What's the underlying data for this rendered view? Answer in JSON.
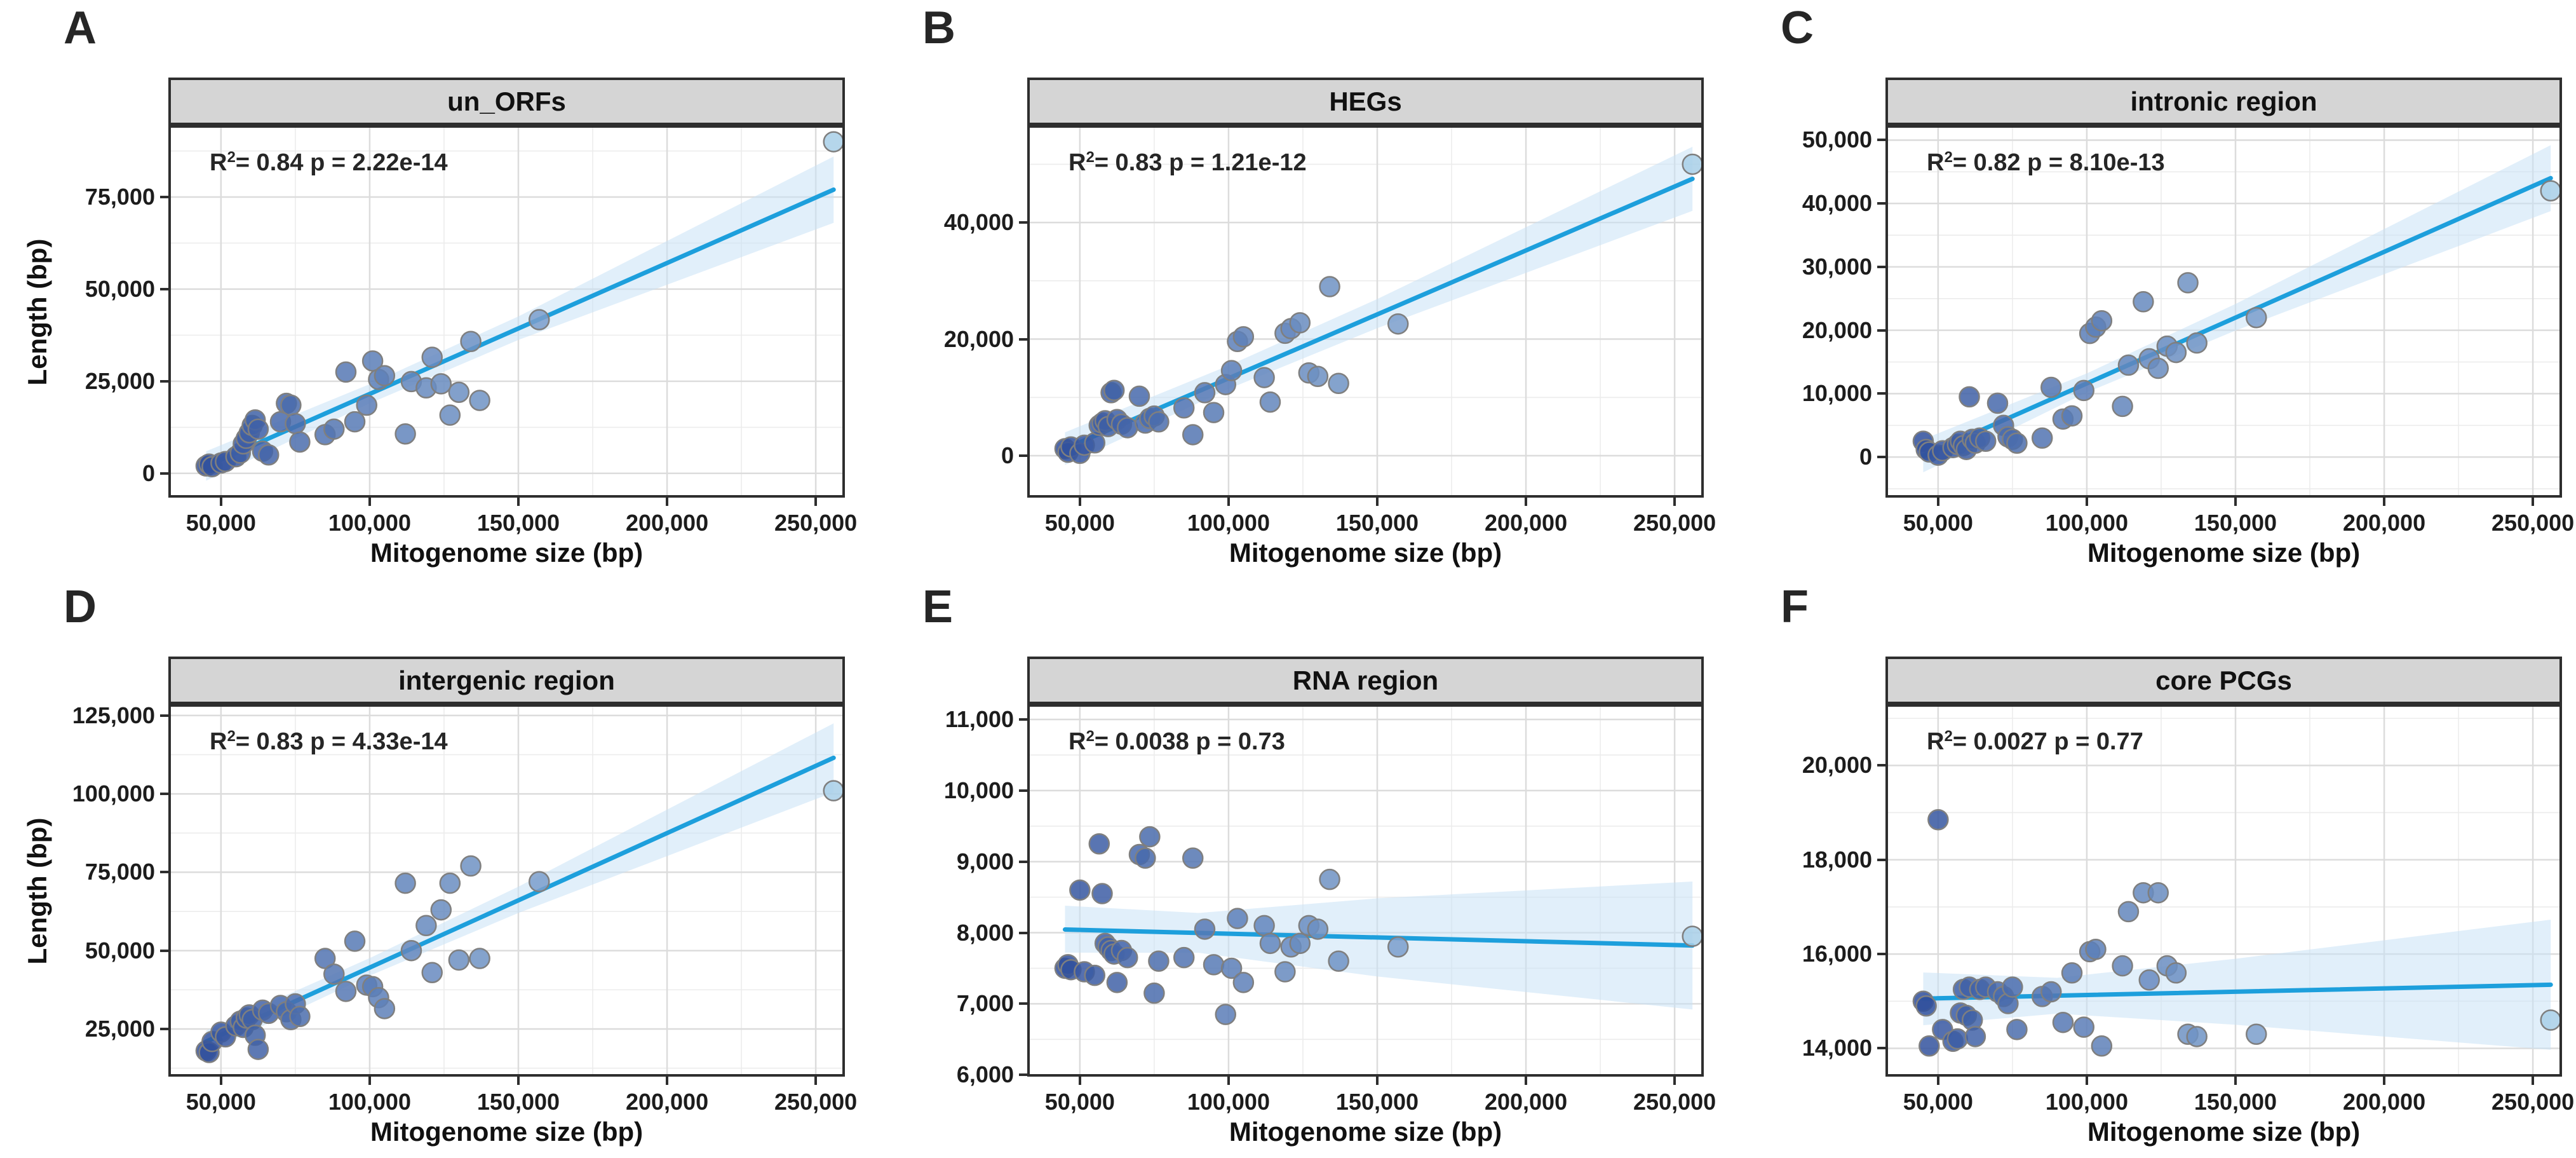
{
  "figure": {
    "xlabel": "Mitogenome size (bp)",
    "ylabel": "Length (bp)",
    "xlim": [
      32300,
      259800
    ],
    "x_ticks": {
      "values": [
        50000,
        100000,
        150000,
        200000,
        250000
      ],
      "labels": [
        "50,000",
        "100,000",
        "150,000",
        "200,000",
        "250,000"
      ]
    },
    "mitogenome_sizes": [
      45000,
      46000,
      47000,
      50000,
      51500,
      55000,
      56500,
      57500,
      58500,
      59500,
      60500,
      61500,
      62500,
      64000,
      66000,
      70000,
      72000,
      73500,
      75000,
      76500,
      85000,
      88000,
      92000,
      95000,
      99000,
      101000,
      103000,
      105000,
      112000,
      114000,
      119000,
      121000,
      124000,
      127000,
      130000,
      134000,
      137000,
      157000,
      256000
    ],
    "colors": {
      "trend_line": "#1d9fdc",
      "confidence_band": "#c9e2f5",
      "point_fill_small_genome": "#2e4e9b",
      "point_fill_large_genome": "#a8cfe8",
      "point_stroke": "#7f7f7f",
      "header_background": "#d5d5d5",
      "frame_border": "#2e2e2e",
      "grid_major": "#dcdcdc",
      "grid_minor": "#ececec",
      "text": "#1c1c1c"
    }
  },
  "chart_data": [
    {
      "type": "scatter",
      "panel": "A",
      "title": "un_ORFs",
      "r_label": "R",
      "r_sup": "2",
      "stats": "= 0.84 p = 2.22e-14",
      "xlabel": "Mitogenome size (bp)",
      "ylabel": "Length (bp)",
      "ylim": [
        -6600,
        94500
      ],
      "y_ticks": {
        "values": [
          0,
          25000,
          50000,
          75000
        ],
        "labels": [
          "0",
          "25,000",
          "50,000",
          "75,000"
        ]
      },
      "y": [
        2000,
        2500,
        1800,
        2800,
        3200,
        4500,
        5500,
        8000,
        9500,
        11000,
        13000,
        14500,
        12000,
        6000,
        5000,
        14000,
        19000,
        18500,
        13500,
        8500,
        10500,
        12000,
        27500,
        14000,
        18500,
        30500,
        25500,
        26500,
        10700,
        24900,
        23200,
        31500,
        24300,
        15800,
        22000,
        35800,
        19800,
        41700,
        90000
      ],
      "trend": {
        "x": [
          45000,
          256000
        ],
        "y": [
          2000,
          77000
        ]
      },
      "band": {
        "x": [
          45000,
          100000,
          150000,
          256000
        ],
        "lower": [
          -2000,
          19000,
          36200,
          68000
        ],
        "upper": [
          6000,
          24200,
          42600,
          86000
        ]
      }
    },
    {
      "type": "scatter",
      "panel": "B",
      "title": "HEGs",
      "r_label": "R",
      "r_sup": "2",
      "stats": "= 0.83 p = 1.21e-12",
      "xlabel": "Mitogenome size (bp)",
      "ylabel": "",
      "ylim": [
        -7200,
        56700
      ],
      "y_ticks": {
        "values": [
          0,
          20000,
          40000
        ],
        "labels": [
          "0",
          "20,000",
          "40,000"
        ]
      },
      "y": [
        1200,
        600,
        1500,
        400,
        1800,
        2200,
        5200,
        5600,
        6000,
        5000,
        10800,
        11200,
        6200,
        5400,
        4800,
        10200,
        5600,
        6400,
        6800,
        5800,
        8200,
        3600,
        10800,
        7400,
        12200,
        14600,
        19600,
        20400,
        13400,
        9200,
        21000,
        21800,
        22800,
        14200,
        13600,
        29000,
        12400,
        22600,
        50000
      ],
      "trend": {
        "x": [
          45000,
          256000
        ],
        "y": [
          1200,
          47500
        ]
      },
      "band": {
        "x": [
          45000,
          100000,
          150000,
          256000
        ],
        "lower": [
          -1600,
          11460,
          21870,
          42000
        ],
        "upper": [
          4000,
          15460,
          26870,
          53000
        ]
      }
    },
    {
      "type": "scatter",
      "panel": "C",
      "title": "intronic region",
      "r_label": "R",
      "r_sup": "2",
      "stats": "= 0.82 p = 8.10e-13",
      "xlabel": "Mitogenome size (bp)",
      "ylabel": "",
      "ylim": [
        -6400,
        52350
      ],
      "y_ticks": {
        "values": [
          0,
          10000,
          20000,
          30000,
          40000,
          50000
        ],
        "labels": [
          "0",
          "10,000",
          "20,000",
          "30,000",
          "40,000",
          "50,000"
        ]
      },
      "y": [
        2500,
        1200,
        800,
        300,
        1000,
        1500,
        2000,
        2500,
        1800,
        1200,
        9500,
        2800,
        2200,
        3000,
        2500,
        8500,
        5000,
        3200,
        2800,
        2200,
        3000,
        11000,
        6000,
        6500,
        10500,
        19500,
        20500,
        21500,
        8000,
        14500,
        24500,
        15500,
        14000,
        17500,
        16500,
        27500,
        18000,
        22000,
        42000
      ],
      "trend": {
        "x": [
          45000,
          256000
        ],
        "y": [
          200,
          44000
        ]
      },
      "band": {
        "x": [
          45000,
          100000,
          150000,
          256000
        ],
        "lower": [
          -2400,
          10200,
          19950,
          38800
        ],
        "upper": [
          2800,
          13200,
          24150,
          49200
        ]
      }
    },
    {
      "type": "scatter",
      "panel": "D",
      "title": "intergenic region",
      "r_label": "R",
      "r_sup": "2",
      "stats": "= 0.83 p = 4.33e-14",
      "xlabel": "Mitogenome size (bp)",
      "ylabel": "Length (bp)",
      "ylim": [
        9800,
        128600
      ],
      "y_ticks": {
        "values": [
          25000,
          50000,
          75000,
          100000,
          125000
        ],
        "labels": [
          "25,000",
          "50,000",
          "75,000",
          "100,000",
          "125,000"
        ]
      },
      "y": [
        18000,
        17500,
        21000,
        24000,
        22500,
        26000,
        27500,
        25500,
        28500,
        29500,
        28000,
        23000,
        18500,
        31000,
        30000,
        32500,
        30500,
        28000,
        33000,
        29000,
        47500,
        42500,
        37000,
        53000,
        39000,
        38500,
        35000,
        31500,
        71500,
        50000,
        58000,
        43000,
        63000,
        71500,
        47000,
        77000,
        47500,
        72000,
        101000
      ],
      "trend": {
        "x": [
          45000,
          256000
        ],
        "y": [
          21000,
          111500
        ]
      },
      "band": {
        "x": [
          45000,
          100000,
          150000,
          256000
        ],
        "lower": [
          17500,
          42000,
          62000,
          100500
        ],
        "upper": [
          24500,
          47600,
          70400,
          122500
        ]
      }
    },
    {
      "type": "scatter",
      "panel": "E",
      "title": "RNA region",
      "r_label": "R",
      "r_sup": "2",
      "stats": "= 0.0038 p = 0.73",
      "xlabel": "Mitogenome size (bp)",
      "ylabel": "",
      "ylim": [
        5975,
        11215
      ],
      "y_ticks": {
        "values": [
          6000,
          7000,
          8000,
          9000,
          10000,
          11000
        ],
        "labels": [
          "6,000",
          "7,000",
          "8,000",
          "9,000",
          "10,000",
          "11,000"
        ]
      },
      "y": [
        7500,
        7550,
        7480,
        8600,
        7450,
        7400,
        9250,
        8550,
        7850,
        7800,
        7750,
        7700,
        7300,
        7750,
        7650,
        9100,
        9050,
        9350,
        7150,
        7600,
        7650,
        9050,
        8050,
        7550,
        6850,
        7500,
        8200,
        7300,
        8100,
        7850,
        7450,
        7800,
        7850,
        8100,
        8050,
        8750,
        7600,
        7800,
        7950
      ],
      "trend": {
        "x": [
          45000,
          256000
        ],
        "y": [
          8045,
          7820
        ]
      },
      "band": {
        "x": [
          45000,
          90000,
          150000,
          256000
        ],
        "lower": [
          7720,
          7718,
          7384,
          6920
        ],
        "upper": [
          8380,
          8278,
          8484,
          8720
        ]
      }
    },
    {
      "type": "scatter",
      "panel": "F",
      "title": "core PCGs",
      "r_label": "R",
      "r_sup": "2",
      "stats": "= 0.0027 p = 0.77",
      "xlabel": "Mitogenome size (bp)",
      "ylabel": "",
      "ylim": [
        13400,
        21300
      ],
      "y_ticks": {
        "values": [
          14000,
          16000,
          18000,
          20000
        ],
        "labels": [
          "14,000",
          "16,000",
          "18,000",
          "20,000"
        ]
      },
      "y": [
        15000,
        14900,
        14050,
        18850,
        14400,
        14150,
        14200,
        14750,
        15250,
        14700,
        15300,
        14600,
        14250,
        15250,
        15300,
        15200,
        15100,
        14950,
        15300,
        14400,
        15100,
        15200,
        14550,
        15600,
        14450,
        16050,
        16100,
        14050,
        15750,
        16900,
        17300,
        15450,
        17300,
        15750,
        15600,
        14300,
        14250,
        14300,
        14600
      ],
      "trend": {
        "x": [
          45000,
          256000
        ],
        "y": [
          15055,
          15350
        ]
      },
      "band": {
        "x": [
          45000,
          90000,
          150000,
          256000
        ],
        "lower": [
          14490,
          14737,
          14501,
          13970
        ],
        "upper": [
          15610,
          15497,
          15901,
          16730
        ]
      }
    }
  ]
}
